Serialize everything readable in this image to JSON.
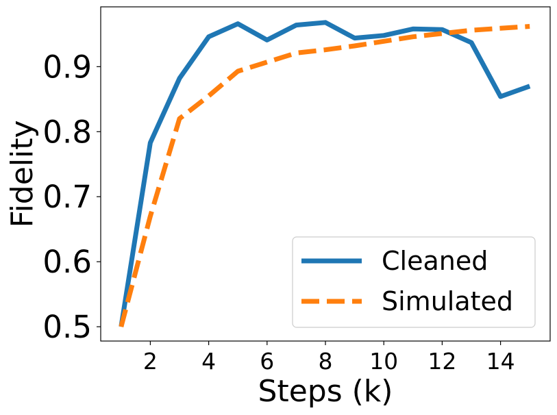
{
  "chart_data": {
    "type": "line",
    "xlabel": "Steps (k)",
    "ylabel": "Fidelity",
    "xlim": [
      0.3,
      15.7
    ],
    "ylim": [
      0.478,
      0.992
    ],
    "xticks": [
      "2",
      "4",
      "6",
      "8",
      "10",
      "12",
      "14"
    ],
    "yticks": [
      "0.5",
      "0.6",
      "0.7",
      "0.8",
      "0.9"
    ],
    "grid": false,
    "legend_position": "lower-right",
    "series": [
      {
        "name": "Cleaned",
        "color": "#1f77b4",
        "style": "solid",
        "x": [
          1,
          2,
          3,
          4,
          5,
          6,
          7,
          8,
          9,
          10,
          11,
          12,
          13,
          14,
          15
        ],
        "y": [
          0.5,
          0.783,
          0.882,
          0.946,
          0.966,
          0.941,
          0.964,
          0.968,
          0.944,
          0.948,
          0.958,
          0.957,
          0.937,
          0.854,
          0.87
        ]
      },
      {
        "name": "Simulated",
        "color": "#ff7f0e",
        "style": "dashed",
        "x": [
          1,
          2,
          3,
          4,
          5,
          6,
          7,
          8,
          9,
          10,
          11,
          12,
          13,
          14,
          15
        ],
        "y": [
          0.5,
          0.67,
          0.82,
          0.855,
          0.893,
          0.907,
          0.921,
          0.926,
          0.932,
          0.939,
          0.946,
          0.951,
          0.956,
          0.959,
          0.962
        ]
      }
    ]
  }
}
